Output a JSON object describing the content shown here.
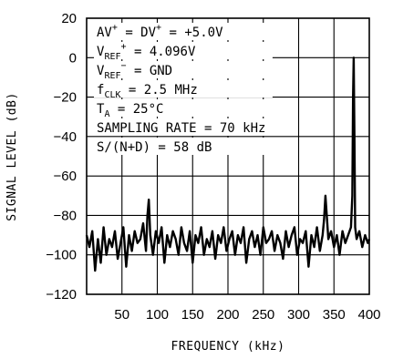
{
  "chart_data": {
    "type": "line",
    "xlabel": "FREQUENCY (kHz)",
    "ylabel": "SIGNAL LEVEL (dB)",
    "xlim": [
      0,
      400
    ],
    "ylim": [
      -120,
      20
    ],
    "x_ticks": [
      "50",
      "100",
      "150",
      "200",
      "250",
      "300",
      "350",
      "400"
    ],
    "y_ticks": [
      "20",
      "0",
      "−20",
      "−40",
      "−60",
      "−80",
      "−100",
      "−120"
    ],
    "grid": true,
    "annotations": [
      {
        "main": "AV",
        "sup": "+",
        "rest": " = DV",
        "sup2": "+",
        "tail": " = +5.0V"
      },
      {
        "main": "V",
        "sub": "REF",
        "sup": "+",
        "tail": " = 4.096V"
      },
      {
        "main": "V",
        "sub": "REF",
        "sup": "−",
        "tail": " = GND"
      },
      {
        "main": "f",
        "sub": "CLK",
        "tail": " = 2.5 MHz"
      },
      {
        "main": "T",
        "sub": "A",
        "tail": " = 25°C"
      },
      {
        "main": "SAMPLING RATE = 70 kHz"
      },
      {
        "main": "S/(N+D) = 58 dB"
      }
    ],
    "series": [
      {
        "x": [
          0,
          4,
          8,
          12,
          16,
          20,
          24,
          28,
          32,
          36,
          40,
          44,
          48,
          52,
          56,
          60,
          64,
          68,
          72,
          76,
          80,
          84,
          86,
          88,
          90,
          94,
          98,
          102,
          106,
          110,
          114,
          118,
          122,
          126,
          130,
          134,
          138,
          142,
          146,
          150,
          154,
          158,
          162,
          166,
          170,
          174,
          178,
          182,
          186,
          190,
          194,
          198,
          202,
          206,
          210,
          214,
          218,
          222,
          226,
          230,
          234,
          238,
          242,
          246,
          250,
          254,
          258,
          262,
          266,
          270,
          274,
          278,
          282,
          286,
          290,
          294,
          298,
          302,
          306,
          310,
          314,
          318,
          322,
          326,
          330,
          334,
          336,
          338,
          342,
          346,
          350,
          354,
          358,
          362,
          366,
          370,
          374,
          376,
          377,
          378,
          379,
          380,
          382,
          386,
          390,
          394,
          398,
          400
        ],
        "y": [
          -90,
          -96,
          -88,
          -108,
          -92,
          -104,
          -86,
          -100,
          -92,
          -96,
          -88,
          -102,
          -94,
          -86,
          -106,
          -90,
          -98,
          -88,
          -94,
          -92,
          -84,
          -98,
          -80,
          -72,
          -90,
          -100,
          -88,
          -94,
          -86,
          -104,
          -90,
          -96,
          -88,
          -92,
          -100,
          -86,
          -94,
          -98,
          -88,
          -104,
          -90,
          -94,
          -86,
          -100,
          -92,
          -96,
          -88,
          -102,
          -90,
          -94,
          -86,
          -98,
          -92,
          -88,
          -100,
          -90,
          -94,
          -86,
          -104,
          -92,
          -88,
          -96,
          -90,
          -100,
          -86,
          -94,
          -92,
          -88,
          -98,
          -90,
          -94,
          -102,
          -88,
          -96,
          -90,
          -86,
          -100,
          -92,
          -94,
          -88,
          -106,
          -90,
          -96,
          -86,
          -98,
          -90,
          -82,
          -70,
          -92,
          -88,
          -96,
          -90,
          -100,
          -88,
          -94,
          -90,
          -86,
          -70,
          -20,
          0,
          -40,
          -86,
          -92,
          -88,
          -96,
          -90,
          -94,
          -92
        ]
      }
    ]
  }
}
